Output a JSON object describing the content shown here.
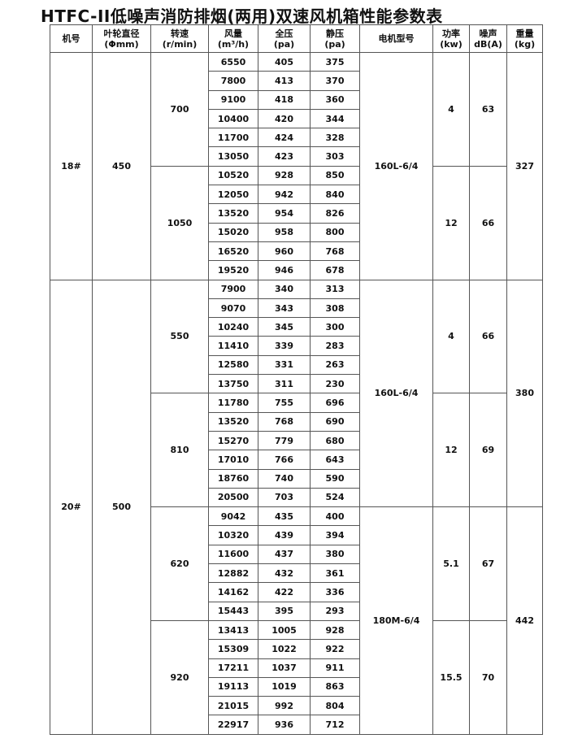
{
  "title": "HTFC-II低噪声消防排烟(两用)双速风机箱性能参数表",
  "headers": [
    [
      "机号",
      ""
    ],
    [
      "叶轮直径",
      "(Φmm)"
    ],
    [
      "转速",
      "(r/min)"
    ],
    [
      "风量",
      "(m³/h)"
    ],
    [
      "全压",
      "(pa)"
    ],
    [
      "静压",
      "(pa)"
    ],
    [
      "电机型号",
      ""
    ],
    [
      "功率",
      "(kw)"
    ],
    [
      "噪声",
      "dB(A)"
    ],
    [
      "重量",
      "(kg)"
    ]
  ],
  "machines": [
    {
      "model": "18#",
      "diameter": "450",
      "groups": [
        {
          "speed": "700",
          "power": "4",
          "noise": "63",
          "rows": [
            [
              "6550",
              "405",
              "375"
            ],
            [
              "7800",
              "413",
              "370"
            ],
            [
              "9100",
              "418",
              "360"
            ],
            [
              "10400",
              "420",
              "344"
            ],
            [
              "11700",
              "424",
              "328"
            ],
            [
              "13050",
              "423",
              "303"
            ]
          ]
        },
        {
          "speed": "1050",
          "power": "12",
          "noise": "66",
          "rows": [
            [
              "10520",
              "928",
              "850"
            ],
            [
              "12050",
              "942",
              "840"
            ],
            [
              "13520",
              "954",
              "826"
            ],
            [
              "15020",
              "958",
              "800"
            ],
            [
              "16520",
              "960",
              "768"
            ],
            [
              "19520",
              "946",
              "678"
            ]
          ]
        }
      ],
      "motors": [
        {
          "name": "160L-6/4",
          "span": 2
        }
      ],
      "weights": [
        {
          "value": "327",
          "span": 2
        }
      ]
    },
    {
      "model": "20#",
      "diameter": "500",
      "groups": [
        {
          "speed": "550",
          "power": "4",
          "noise": "66",
          "rows": [
            [
              "7900",
              "340",
              "313"
            ],
            [
              "9070",
              "343",
              "308"
            ],
            [
              "10240",
              "345",
              "300"
            ],
            [
              "11410",
              "339",
              "283"
            ],
            [
              "12580",
              "331",
              "263"
            ],
            [
              "13750",
              "311",
              "230"
            ]
          ]
        },
        {
          "speed": "810",
          "power": "12",
          "noise": "69",
          "rows": [
            [
              "11780",
              "755",
              "696"
            ],
            [
              "13520",
              "768",
              "690"
            ],
            [
              "15270",
              "779",
              "680"
            ],
            [
              "17010",
              "766",
              "643"
            ],
            [
              "18760",
              "740",
              "590"
            ],
            [
              "20500",
              "703",
              "524"
            ]
          ]
        },
        {
          "speed": "620",
          "power": "5.1",
          "noise": "67",
          "rows": [
            [
              "9042",
              "435",
              "400"
            ],
            [
              "10320",
              "439",
              "394"
            ],
            [
              "11600",
              "437",
              "380"
            ],
            [
              "12882",
              "432",
              "361"
            ],
            [
              "14162",
              "422",
              "336"
            ],
            [
              "15443",
              "395",
              "293"
            ]
          ]
        },
        {
          "speed": "920",
          "power": "15.5",
          "noise": "70",
          "rows": [
            [
              "13413",
              "1005",
              "928"
            ],
            [
              "15309",
              "1022",
              "922"
            ],
            [
              "17211",
              "1037",
              "911"
            ],
            [
              "19113",
              "1019",
              "863"
            ],
            [
              "21015",
              "992",
              "804"
            ],
            [
              "22917",
              "936",
              "712"
            ]
          ]
        }
      ],
      "motors": [
        {
          "name": "160L-6/4",
          "span": 2
        },
        {
          "name": "180M-6/4",
          "span": 2
        }
      ],
      "weights": [
        {
          "value": "380",
          "span": 2
        },
        {
          "value": "442",
          "span": 2
        }
      ]
    }
  ]
}
